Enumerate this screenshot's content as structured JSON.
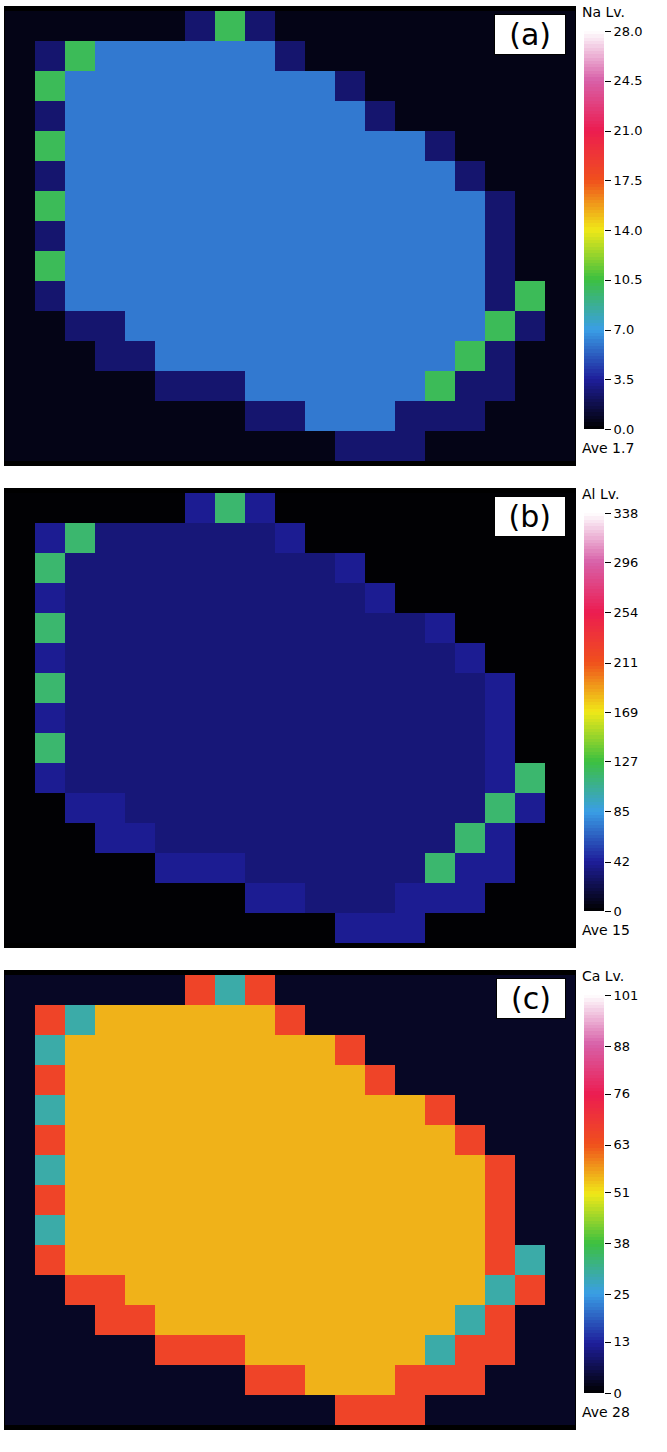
{
  "chart_data": [
    {
      "type": "heatmap",
      "panel": "(a)",
      "cells": [
        [
          0.5,
          0.5,
          0.5,
          0.5,
          0.5,
          0.5,
          2.5,
          10,
          2.5,
          0.5,
          0.5,
          0.5,
          0.5,
          0.5,
          0.5,
          0.5,
          0.5,
          0.5,
          0.5
        ],
        [
          0.5,
          2.5,
          10,
          6,
          6,
          6,
          6,
          6,
          6,
          2.5,
          0.5,
          0.5,
          0.5,
          0.5,
          0.5,
          0.5,
          0.5,
          0.5,
          0.5
        ],
        [
          0.5,
          10,
          6,
          6,
          6,
          6,
          6,
          6,
          6,
          6,
          6,
          2.5,
          0.5,
          0.5,
          0.5,
          0.5,
          0.5,
          0.5,
          0.5
        ],
        [
          0.5,
          2.5,
          6,
          6,
          6,
          6,
          6,
          6,
          6,
          6,
          6,
          6,
          2.5,
          0.5,
          0.5,
          0.5,
          0.5,
          0.5,
          0.5
        ],
        [
          0.5,
          10,
          6,
          6,
          6,
          6,
          6,
          6,
          6,
          6,
          6,
          6,
          6,
          6,
          2.5,
          0.5,
          0.5,
          0.5,
          0.5
        ],
        [
          0.5,
          2.5,
          6,
          6,
          6,
          6,
          6,
          6,
          6,
          6,
          6,
          6,
          6,
          6,
          6,
          2.5,
          0.5,
          0.5,
          0.5
        ],
        [
          0.5,
          10,
          6,
          6,
          6,
          6,
          6,
          6,
          6,
          6,
          6,
          6,
          6,
          6,
          6,
          6,
          2.5,
          0.5,
          0.5
        ],
        [
          0.5,
          2.5,
          6,
          6,
          6,
          6,
          6,
          6,
          6,
          6,
          6,
          6,
          6,
          6,
          6,
          6,
          2.5,
          0.5,
          0.5
        ],
        [
          0.5,
          10,
          6,
          6,
          6,
          6,
          6,
          6,
          6,
          6,
          6,
          6,
          6,
          6,
          6,
          6,
          2.5,
          0.5,
          0.5
        ],
        [
          0.5,
          2.5,
          6,
          6,
          6,
          6,
          6,
          6,
          6,
          6,
          6,
          6,
          6,
          6,
          6,
          6,
          2.5,
          10,
          0.5
        ],
        [
          0.5,
          0.5,
          2.5,
          2.5,
          6,
          6,
          6,
          6,
          6,
          6,
          6,
          6,
          6,
          6,
          6,
          6,
          10,
          2.5,
          0.5
        ],
        [
          0.5,
          0.5,
          0.5,
          2.5,
          2.5,
          6,
          6,
          6,
          6,
          6,
          6,
          6,
          6,
          6,
          6,
          10,
          2.5,
          0.5,
          0.5
        ],
        [
          0.5,
          0.5,
          0.5,
          0.5,
          0.5,
          2.5,
          2.5,
          2.5,
          6,
          6,
          6,
          6,
          6,
          6,
          10,
          2.5,
          2.5,
          0.5,
          0.5
        ],
        [
          0.5,
          0.5,
          0.5,
          0.5,
          0.5,
          0.5,
          0.5,
          0.5,
          2.5,
          2.5,
          6,
          6,
          6,
          2.5,
          2.5,
          2.5,
          0.5,
          0.5,
          0.5
        ],
        [
          0.5,
          0.5,
          0.5,
          0.5,
          0.5,
          0.5,
          0.5,
          0.5,
          0.5,
          0.5,
          0.5,
          2.5,
          2.5,
          2.5,
          0.5,
          0.5,
          0.5,
          0.5,
          0.5
        ]
      ],
      "colorbar": {
        "title": "Na Lv.",
        "range": [
          0,
          28
        ],
        "ticks": [
          {
            "value": 0,
            "label": "0.0"
          },
          3.5,
          {
            "value": 7,
            "label": "7.0"
          },
          10.5,
          {
            "value": 14,
            "label": "14.0"
          },
          17.5,
          {
            "value": 21,
            "label": "21.0"
          },
          24.5,
          {
            "value": 28,
            "label": "28.0"
          }
        ],
        "annotation": "Ave 1.7"
      }
    },
    {
      "type": "heatmap",
      "panel": "(b)",
      "cells": [
        [
          1,
          1,
          1,
          1,
          1,
          1,
          40,
          115,
          40,
          1,
          1,
          1,
          1,
          1,
          1,
          1,
          1,
          1,
          1
        ],
        [
          1,
          40,
          115,
          33,
          33,
          33,
          33,
          33,
          33,
          40,
          1,
          1,
          1,
          1,
          1,
          1,
          1,
          1,
          1
        ],
        [
          1,
          115,
          33,
          33,
          33,
          33,
          33,
          33,
          33,
          33,
          33,
          40,
          1,
          1,
          1,
          1,
          1,
          1,
          1
        ],
        [
          1,
          40,
          33,
          33,
          33,
          33,
          33,
          33,
          33,
          33,
          33,
          33,
          40,
          1,
          1,
          1,
          1,
          1,
          1
        ],
        [
          1,
          115,
          33,
          33,
          33,
          33,
          33,
          33,
          33,
          33,
          33,
          33,
          33,
          33,
          40,
          1,
          1,
          1,
          1
        ],
        [
          1,
          40,
          33,
          33,
          33,
          33,
          33,
          33,
          33,
          33,
          33,
          33,
          33,
          33,
          33,
          40,
          1,
          1,
          1
        ],
        [
          1,
          115,
          33,
          33,
          33,
          33,
          33,
          33,
          33,
          33,
          33,
          33,
          33,
          33,
          33,
          33,
          40,
          1,
          1
        ],
        [
          1,
          40,
          33,
          33,
          33,
          33,
          33,
          33,
          33,
          33,
          33,
          33,
          33,
          33,
          33,
          33,
          40,
          1,
          1
        ],
        [
          1,
          115,
          33,
          33,
          33,
          33,
          33,
          33,
          33,
          33,
          33,
          33,
          33,
          33,
          33,
          33,
          40,
          1,
          1
        ],
        [
          1,
          40,
          33,
          33,
          33,
          33,
          33,
          33,
          33,
          33,
          33,
          33,
          33,
          33,
          33,
          33,
          40,
          115,
          1
        ],
        [
          1,
          1,
          40,
          40,
          33,
          33,
          33,
          33,
          33,
          33,
          33,
          33,
          33,
          33,
          33,
          33,
          115,
          40,
          1
        ],
        [
          1,
          1,
          1,
          40,
          40,
          33,
          33,
          33,
          33,
          33,
          33,
          33,
          33,
          33,
          33,
          115,
          40,
          1,
          1
        ],
        [
          1,
          1,
          1,
          1,
          1,
          40,
          40,
          40,
          33,
          33,
          33,
          33,
          33,
          33,
          115,
          40,
          40,
          1,
          1
        ],
        [
          1,
          1,
          1,
          1,
          1,
          1,
          1,
          1,
          40,
          40,
          33,
          33,
          33,
          40,
          40,
          40,
          1,
          1,
          1
        ],
        [
          1,
          1,
          1,
          1,
          1,
          1,
          1,
          1,
          1,
          1,
          1,
          40,
          40,
          40,
          1,
          1,
          1,
          1,
          1
        ]
      ],
      "colorbar": {
        "title": "Al Lv.",
        "range": [
          0,
          338
        ],
        "ticks": [
          0,
          42,
          85,
          127,
          169,
          211,
          254,
          296,
          338
        ],
        "annotation": "Ave 15"
      }
    },
    {
      "type": "heatmap",
      "panel": "(c)",
      "cells": [
        [
          3,
          3,
          3,
          3,
          3,
          3,
          66,
          30,
          66,
          3,
          3,
          3,
          3,
          3,
          3,
          3,
          3,
          3,
          3
        ],
        [
          3,
          66,
          30,
          55,
          55,
          55,
          55,
          55,
          55,
          66,
          3,
          3,
          3,
          3,
          3,
          3,
          3,
          3,
          3
        ],
        [
          3,
          30,
          55,
          55,
          55,
          55,
          55,
          55,
          55,
          55,
          55,
          66,
          3,
          3,
          3,
          3,
          3,
          3,
          3
        ],
        [
          3,
          66,
          55,
          55,
          55,
          55,
          55,
          55,
          55,
          55,
          55,
          55,
          66,
          3,
          3,
          3,
          3,
          3,
          3
        ],
        [
          3,
          30,
          55,
          55,
          55,
          55,
          55,
          55,
          55,
          55,
          55,
          55,
          55,
          55,
          66,
          3,
          3,
          3,
          3
        ],
        [
          3,
          66,
          55,
          55,
          55,
          55,
          55,
          55,
          55,
          55,
          55,
          55,
          55,
          55,
          55,
          66,
          3,
          3,
          3
        ],
        [
          3,
          30,
          55,
          55,
          55,
          55,
          55,
          55,
          55,
          55,
          55,
          55,
          55,
          55,
          55,
          55,
          66,
          3,
          3
        ],
        [
          3,
          66,
          55,
          55,
          55,
          55,
          55,
          55,
          55,
          55,
          55,
          55,
          55,
          55,
          55,
          55,
          66,
          3,
          3
        ],
        [
          3,
          30,
          55,
          55,
          55,
          55,
          55,
          55,
          55,
          55,
          55,
          55,
          55,
          55,
          55,
          55,
          66,
          3,
          3
        ],
        [
          3,
          66,
          55,
          55,
          55,
          55,
          55,
          55,
          55,
          55,
          55,
          55,
          55,
          55,
          55,
          55,
          66,
          30,
          3
        ],
        [
          3,
          3,
          66,
          66,
          55,
          55,
          55,
          55,
          55,
          55,
          55,
          55,
          55,
          55,
          55,
          55,
          30,
          66,
          3
        ],
        [
          3,
          3,
          3,
          66,
          66,
          55,
          55,
          55,
          55,
          55,
          55,
          55,
          55,
          55,
          55,
          30,
          66,
          3,
          3
        ],
        [
          3,
          3,
          3,
          3,
          3,
          66,
          66,
          66,
          55,
          55,
          55,
          55,
          55,
          55,
          30,
          66,
          66,
          3,
          3
        ],
        [
          3,
          3,
          3,
          3,
          3,
          3,
          3,
          3,
          66,
          66,
          55,
          55,
          55,
          66,
          66,
          66,
          3,
          3,
          3
        ],
        [
          3,
          3,
          3,
          3,
          3,
          3,
          3,
          3,
          3,
          3,
          3,
          66,
          66,
          66,
          3,
          3,
          3,
          3,
          3
        ]
      ],
      "colorbar": {
        "title": "Ca Lv.",
        "range": [
          0,
          101
        ],
        "ticks": [
          0,
          13,
          25,
          38,
          51,
          63,
          76,
          88,
          101
        ],
        "annotation": "Ave 28"
      }
    }
  ]
}
